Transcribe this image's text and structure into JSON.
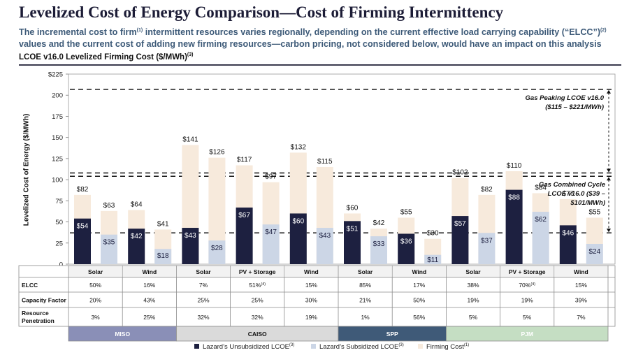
{
  "header": {
    "title": "Levelized Cost of Energy Comparison—Cost of Firming Intermittency",
    "subtitle_part1": "The incremental cost to firm",
    "subtitle_sup1": "(1)",
    "subtitle_part2": " intermittent resources varies regionally, depending on the current effective load carrying capability (“ELCC”)",
    "subtitle_sup2": "(2)",
    "subtitle_part3": " values and the current cost of adding new firming resources—carbon pricing, not considered below, would have an impact on this analysis",
    "chart_title": "LCOE v16.0 Levelized Firming Cost ($/MWh)",
    "chart_title_sup": "(3)"
  },
  "colors": {
    "unsubsidized": "#1d2040",
    "subsidized": "#ccd6e6",
    "firming": "#f7eadc",
    "miso": "#8a8fb7",
    "caiso": "#dadada",
    "spp": "#3f5a78",
    "pjm": "#c5dec3"
  },
  "chart_data": {
    "type": "bar",
    "ylabel": "Levelized Cost of Energy ($/MWh)",
    "ylim": [
      0,
      225
    ],
    "yticks": [
      0,
      25,
      50,
      75,
      100,
      125,
      150,
      175,
      200,
      225
    ],
    "ytick_labels": [
      "0",
      "25",
      "50",
      "75",
      "100",
      "125",
      "150",
      "175",
      "200",
      "$225"
    ],
    "gas_peaking": {
      "range": [
        115,
        221
      ],
      "label_line1": "Gas Peaking LCOE v16.0",
      "label_line2": "($115 – $221/MWh)",
      "dashed_line_value": 207
    },
    "gas_combined_cycle": {
      "range": [
        39,
        101
      ],
      "label_line1": "Gas Combined Cycle",
      "label_line2": "LCOE v16.0 ($39 –",
      "label_line3": "$101/MWh)",
      "dashed_line_values": [
        108,
        104,
        37
      ]
    },
    "legend": [
      {
        "label": "Lazard’s Unsubsidized LCOE",
        "sup": "(3)",
        "key": "unsubsidized"
      },
      {
        "label": "Lazard’s Subsidized LCOE",
        "sup": "(3)",
        "key": "subsidized"
      },
      {
        "label": "Firming Cost",
        "sup": "(1)",
        "key": "firming"
      }
    ],
    "table_rows": [
      "ELCC",
      "Capacity Factor",
      "Resource Penetration"
    ],
    "regions": [
      {
        "name": "MISO",
        "color_key": "miso",
        "resources": [
          {
            "resource": "Solar",
            "unsub_total": 82,
            "unsub_lcoe": 54,
            "sub_total": 63,
            "sub_lcoe": 35,
            "elcc": "50%",
            "capacity_factor": "20%",
            "penetration": "3%"
          },
          {
            "resource": "Wind",
            "unsub_total": 64,
            "unsub_lcoe": 42,
            "sub_total": 41,
            "sub_lcoe": 18,
            "elcc": "16%",
            "capacity_factor": "43%",
            "penetration": "25%"
          }
        ]
      },
      {
        "name": "CAISO",
        "color_key": "caiso",
        "resources": [
          {
            "resource": "Solar",
            "unsub_total": 141,
            "unsub_lcoe": 43,
            "sub_total": 126,
            "sub_lcoe": 28,
            "elcc": "7%",
            "capacity_factor": "25%",
            "penetration": "32%"
          },
          {
            "resource": "PV + Storage",
            "unsub_total": 117,
            "unsub_lcoe": 67,
            "sub_total": 97,
            "sub_lcoe": 47,
            "elcc": "51%",
            "elcc_sup": "(4)",
            "capacity_factor": "25%",
            "penetration": "32%"
          },
          {
            "resource": "Wind",
            "unsub_total": 132,
            "unsub_lcoe": 60,
            "sub_total": 115,
            "sub_lcoe": 43,
            "elcc": "15%",
            "capacity_factor": "30%",
            "penetration": "19%"
          }
        ]
      },
      {
        "name": "SPP",
        "color_key": "spp",
        "resources": [
          {
            "resource": "Solar",
            "unsub_total": 60,
            "unsub_lcoe": 51,
            "sub_total": 42,
            "sub_lcoe": 33,
            "elcc": "85%",
            "capacity_factor": "21%",
            "penetration": "1%"
          },
          {
            "resource": "Wind",
            "unsub_total": 55,
            "unsub_lcoe": 36,
            "sub_total": 30,
            "sub_lcoe": 11,
            "elcc": "17%",
            "capacity_factor": "50%",
            "penetration": "56%"
          }
        ]
      },
      {
        "name": "PJM",
        "color_key": "pjm",
        "resources": [
          {
            "resource": "Solar",
            "unsub_total": 102,
            "unsub_lcoe": 57,
            "sub_total": 82,
            "sub_lcoe": 37,
            "elcc": "38%",
            "capacity_factor": "19%",
            "penetration": "5%"
          },
          {
            "resource": "PV + Storage",
            "unsub_total": 110,
            "unsub_lcoe": 88,
            "sub_total": 84,
            "sub_lcoe": 62,
            "elcc": "70%",
            "elcc_sup": "(4)",
            "capacity_factor": "19%",
            "penetration": "5%"
          },
          {
            "resource": "Wind",
            "unsub_total": 77,
            "unsub_lcoe": 46,
            "sub_total": 55,
            "sub_lcoe": 24,
            "elcc": "15%",
            "capacity_factor": "39%",
            "penetration": "7%"
          }
        ]
      }
    ]
  }
}
